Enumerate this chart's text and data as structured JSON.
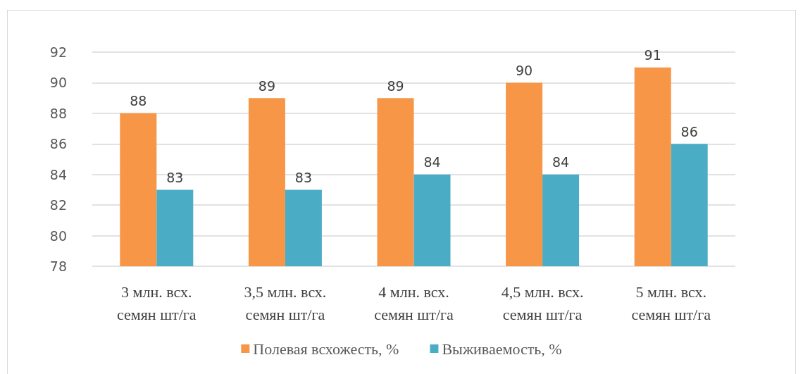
{
  "chart_data": {
    "type": "bar",
    "categories": [
      "3 млн. всх. семян шт/га",
      "3,5 млн. всх. семян шт/га",
      "4 млн. всх. семян шт/га",
      "4,5 млн. всх. семян шт/га",
      "5 млн. всх. семян шт/га"
    ],
    "series": [
      {
        "name": "Полевая всхожесть, %",
        "color": "#f79646",
        "values": [
          88,
          89,
          89,
          90,
          91
        ]
      },
      {
        "name": "Выживаемость, %",
        "color": "#4bacc6",
        "values": [
          83,
          83,
          84,
          84,
          86
        ]
      }
    ],
    "ylim": [
      78,
      92
    ],
    "yticks": [
      78,
      80,
      82,
      84,
      86,
      88,
      90,
      92
    ],
    "grid": "y",
    "legend": "bottom",
    "data_labels": true
  }
}
